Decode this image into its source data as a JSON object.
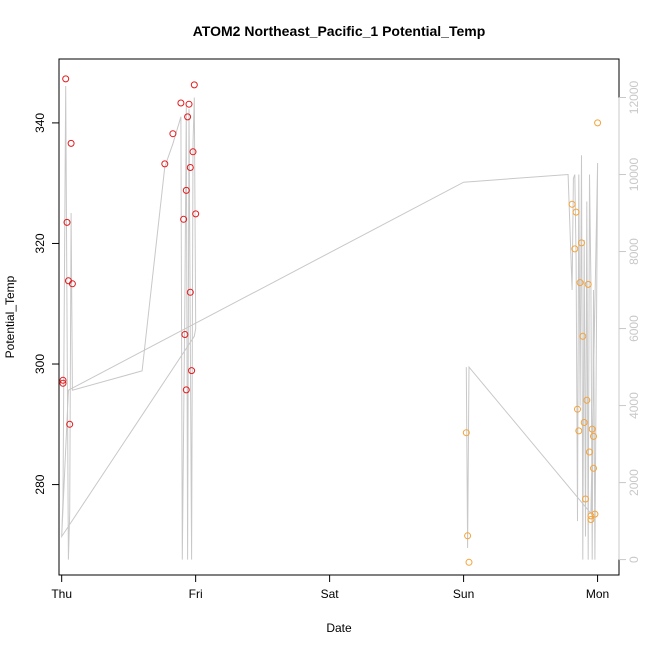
{
  "chart_data": {
    "type": "scatter",
    "title": "ATOM2 Northeast_Pacific_1 Potential_Temp",
    "xlabel": "Date",
    "ylabel": "Potential_Temp",
    "x_axis": {
      "type": "date",
      "range_days": [
        -0.02,
        4.16
      ],
      "ticks": [
        {
          "label": "Thu",
          "day": 0
        },
        {
          "label": "Fri",
          "day": 1
        },
        {
          "label": "Sat",
          "day": 2
        },
        {
          "label": "Sun",
          "day": 3
        },
        {
          "label": "Mon",
          "day": 4
        }
      ]
    },
    "y_left": {
      "range": [
        265,
        350.6
      ],
      "ticks": [
        280,
        300,
        320,
        340
      ]
    },
    "y_right": {
      "range": [
        -400,
        13000
      ],
      "ticks": [
        0,
        2000,
        4000,
        6000,
        8000,
        10000,
        12000
      ],
      "color": "#c8c8c8"
    },
    "grid": false,
    "legend": "none",
    "series": [
      {
        "color": "#e41a1c",
        "points": [
          [
            0.01,
            297.3
          ],
          [
            0.01,
            296.8
          ],
          [
            0.03,
            347.3
          ],
          [
            0.04,
            323.5
          ],
          [
            0.05,
            313.8
          ],
          [
            0.06,
            290.0
          ],
          [
            0.07,
            336.6
          ],
          [
            0.08,
            313.3
          ],
          [
            0.77,
            333.2
          ],
          [
            0.83,
            338.2
          ],
          [
            0.89,
            343.3
          ],
          [
            0.91,
            324.0
          ],
          [
            0.92,
            304.9
          ],
          [
            0.93,
            295.7
          ],
          [
            0.93,
            328.8
          ],
          [
            0.94,
            341.0
          ],
          [
            0.95,
            343.1
          ],
          [
            0.96,
            332.6
          ],
          [
            0.96,
            311.9
          ],
          [
            0.97,
            298.9
          ],
          [
            0.98,
            335.2
          ],
          [
            0.99,
            346.3
          ],
          [
            1.0,
            324.9
          ]
        ]
      },
      {
        "color": "#f5a33a",
        "points": [
          [
            3.02,
            288.6
          ],
          [
            3.03,
            271.5
          ],
          [
            3.04,
            267.1
          ],
          [
            3.81,
            326.5
          ],
          [
            3.83,
            319.1
          ],
          [
            3.84,
            325.2
          ],
          [
            3.85,
            292.5
          ],
          [
            3.86,
            288.9
          ],
          [
            3.87,
            313.5
          ],
          [
            3.88,
            320.1
          ],
          [
            3.89,
            304.6
          ],
          [
            3.9,
            290.3
          ],
          [
            3.91,
            277.6
          ],
          [
            3.92,
            294.0
          ],
          [
            3.93,
            313.2
          ],
          [
            3.94,
            285.4
          ],
          [
            3.95,
            274.8
          ],
          [
            3.95,
            274.2
          ],
          [
            3.96,
            289.2
          ],
          [
            3.97,
            282.7
          ],
          [
            3.97,
            288.0
          ],
          [
            3.98,
            275.1
          ],
          [
            4.0,
            340.0
          ]
        ]
      }
    ],
    "right_axis_line": {
      "color": "#c8c8c8",
      "points": [
        [
          0.0,
          600
        ],
        [
          0.01,
          1600
        ],
        [
          0.03,
          12300
        ],
        [
          0.05,
          0
        ],
        [
          0.06,
          1200
        ],
        [
          0.07,
          9000
        ],
        [
          0.08,
          4400
        ],
        [
          0.6,
          4900
        ],
        [
          0.77,
          10200
        ],
        [
          0.83,
          10800
        ],
        [
          0.89,
          11500
        ],
        [
          0.9,
          0
        ],
        [
          0.92,
          6800
        ],
        [
          0.93,
          11800
        ],
        [
          0.94,
          0
        ],
        [
          0.95,
          11700
        ],
        [
          0.96,
          5800
        ],
        [
          0.97,
          0
        ],
        [
          0.98,
          10800
        ],
        [
          0.99,
          12000
        ],
        [
          1.0,
          6000
        ],
        [
          0.99,
          5800
        ],
        [
          0.0,
          600
        ],
        [
          0.05,
          4400
        ],
        [
          3.0,
          9800
        ],
        [
          3.78,
          10000
        ],
        [
          3.81,
          7000
        ],
        [
          3.82,
          9900
        ],
        [
          3.83,
          10000
        ],
        [
          3.84,
          7800
        ],
        [
          3.85,
          1000
        ],
        [
          3.86,
          10000
        ],
        [
          3.87,
          4000
        ],
        [
          3.88,
          10500
        ],
        [
          3.89,
          0
        ],
        [
          3.9,
          8300
        ],
        [
          3.91,
          600
        ],
        [
          3.92,
          9300
        ],
        [
          3.93,
          0
        ],
        [
          3.94,
          10000
        ],
        [
          3.95,
          7200
        ],
        [
          3.96,
          0
        ],
        [
          3.97,
          7000
        ],
        [
          3.98,
          0
        ],
        [
          4.0,
          10300
        ],
        [
          3.95,
          1200
        ],
        [
          3.04,
          5000
        ],
        [
          3.03,
          300
        ],
        [
          3.02,
          5000
        ]
      ]
    }
  }
}
